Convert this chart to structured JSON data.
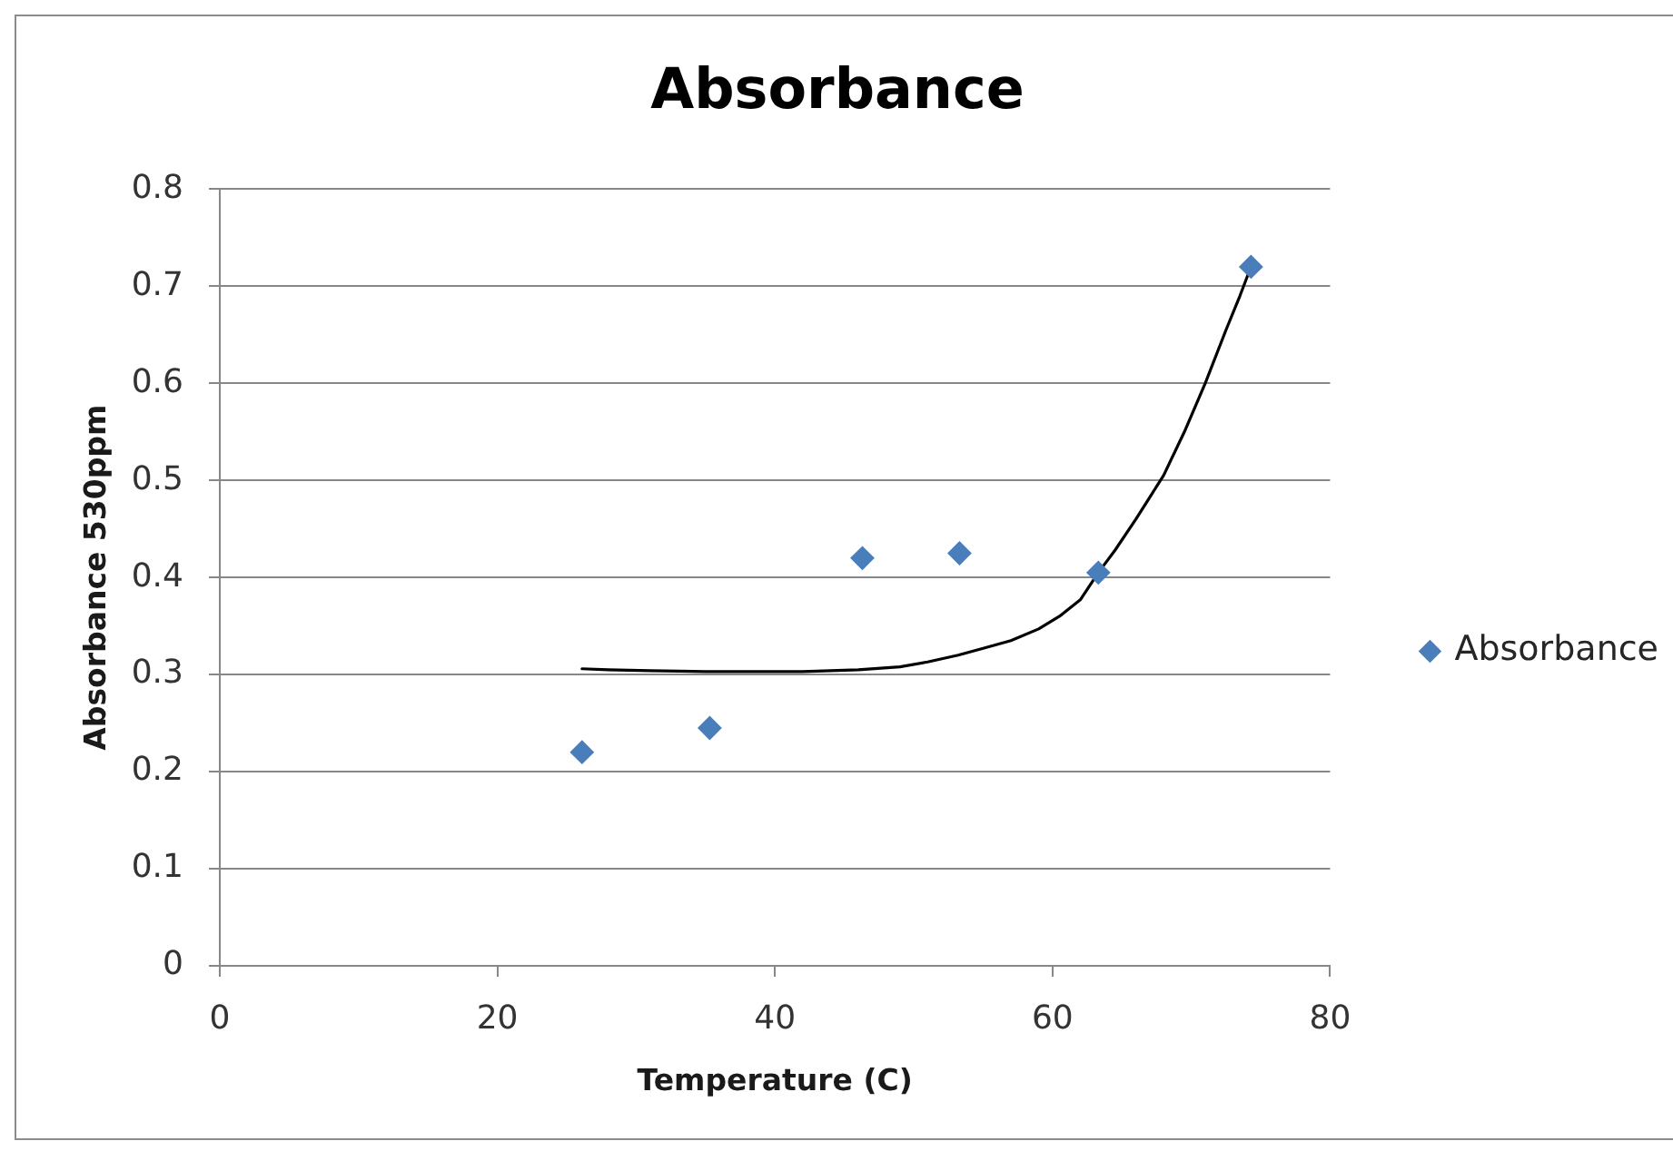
{
  "chart_data": {
    "type": "scatter",
    "title": "Absorbance",
    "xlabel": "Temperature (C)",
    "ylabel": "Absorbance 530ppm",
    "series": [
      {
        "name": "Absorbance",
        "color": "#4a7ebb",
        "marker": "diamond",
        "x": [
          26.1,
          35.3,
          46.3,
          53.3,
          63.3,
          74.3
        ],
        "values": [
          0.22,
          0.245,
          0.42,
          0.425,
          0.405,
          0.72
        ]
      },
      {
        "type": "line",
        "color": "#000000",
        "marker": "none",
        "x": [
          26.1,
          28,
          31,
          35,
          38,
          42,
          46,
          49,
          51,
          53.2,
          55,
          57,
          59,
          60.5,
          62,
          63.3,
          64.5,
          66,
          68,
          69.5,
          71,
          72.5,
          73.5,
          74.3
        ],
        "values": [
          0.306,
          0.305,
          0.304,
          0.303,
          0.303,
          0.303,
          0.305,
          0.308,
          0.313,
          0.32,
          0.327,
          0.335,
          0.347,
          0.36,
          0.377,
          0.405,
          0.428,
          0.46,
          0.505,
          0.55,
          0.6,
          0.655,
          0.69,
          0.72
        ]
      }
    ],
    "xlim": [
      0,
      80
    ],
    "xticks": [
      0,
      20,
      40,
      60,
      80
    ],
    "ylim": [
      0,
      0.8
    ],
    "yticks": [
      0,
      0.1,
      0.2,
      0.3,
      0.4,
      0.5,
      0.6,
      0.7,
      0.8
    ],
    "grid": "y",
    "legend": "right"
  }
}
